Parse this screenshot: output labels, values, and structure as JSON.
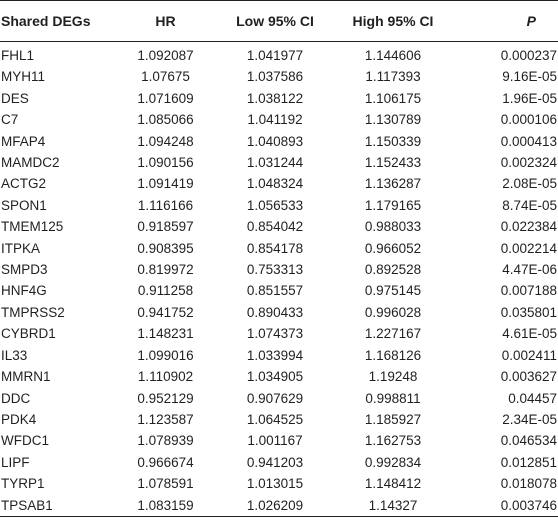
{
  "table": {
    "headers": [
      "Shared DEGs",
      "HR",
      "Low 95% CI",
      "High 95% CI",
      "P"
    ],
    "rows": [
      [
        "FHL1",
        "1.092087",
        "1.041977",
        "1.144606",
        "0.000237"
      ],
      [
        "MYH11",
        "1.07675",
        "1.037586",
        "1.117393",
        "9.16E-05"
      ],
      [
        "DES",
        "1.071609",
        "1.038122",
        "1.106175",
        "1.96E-05"
      ],
      [
        "C7",
        "1.085066",
        "1.041192",
        "1.130789",
        "0.000106"
      ],
      [
        "MFAP4",
        "1.094248",
        "1.040893",
        "1.150339",
        "0.000413"
      ],
      [
        "MAMDC2",
        "1.090156",
        "1.031244",
        "1.152433",
        "0.002324"
      ],
      [
        "ACTG2",
        "1.091419",
        "1.048324",
        "1.136287",
        "2.08E-05"
      ],
      [
        "SPON1",
        "1.116166",
        "1.056533",
        "1.179165",
        "8.74E-05"
      ],
      [
        "TMEM125",
        "0.918597",
        "0.854042",
        "0.988033",
        "0.022384"
      ],
      [
        "ITPKA",
        "0.908395",
        "0.854178",
        "0.966052",
        "0.002214"
      ],
      [
        "SMPD3",
        "0.819972",
        "0.753313",
        "0.892528",
        "4.47E-06"
      ],
      [
        "HNF4G",
        "0.911258",
        "0.851557",
        "0.975145",
        "0.007188"
      ],
      [
        "TMPRSS2",
        "0.941752",
        "0.890433",
        "0.996028",
        "0.035801"
      ],
      [
        "CYBRD1",
        "1.148231",
        "1.074373",
        "1.227167",
        "4.61E-05"
      ],
      [
        "IL33",
        "1.099016",
        "1.033994",
        "1.168126",
        "0.002411"
      ],
      [
        "MMRN1",
        "1.110902",
        "1.034905",
        "1.19248",
        "0.003627"
      ],
      [
        "DDC",
        "0.952129",
        "0.907629",
        "0.998811",
        "0.04457"
      ],
      [
        "PDK4",
        "1.123587",
        "1.064525",
        "1.185927",
        "2.34E-05"
      ],
      [
        "WFDC1",
        "1.078939",
        "1.001167",
        "1.162753",
        "0.046534"
      ],
      [
        "LIPF",
        "0.966674",
        "0.941203",
        "0.992834",
        "0.012851"
      ],
      [
        "TYRP1",
        "1.078591",
        "1.013015",
        "1.148412",
        "0.018078"
      ],
      [
        "TPSAB1",
        "1.083159",
        "1.026209",
        "1.14327",
        "0.003746"
      ]
    ]
  }
}
